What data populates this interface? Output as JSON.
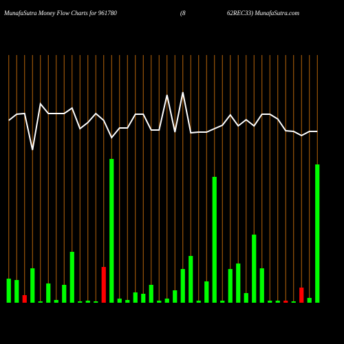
{
  "chart_data": {
    "type": "bar",
    "title": "MunafaSutra  Money Flow  Charts for 961780",
    "subtitle_left": "(8",
    "subtitle_right": "62REC33) MunafaSutra.com",
    "categories": [
      null,
      null,
      null,
      null,
      null,
      null,
      null,
      null,
      null,
      null,
      null,
      null,
      null,
      null,
      null,
      null,
      null,
      null,
      null,
      null,
      null,
      null,
      null,
      null,
      null,
      null,
      null,
      null,
      null,
      null,
      null,
      null,
      null,
      null,
      null,
      null,
      null,
      null,
      null,
      null
    ],
    "values": [
      35,
      33,
      11,
      50,
      2,
      28,
      4,
      26,
      74,
      2,
      3,
      2,
      52,
      209,
      6,
      4,
      15,
      13,
      26,
      3,
      6,
      18,
      49,
      68,
      3,
      31,
      183,
      3,
      49,
      57,
      14,
      99,
      50,
      3,
      3,
      3,
      2,
      22,
      7,
      201
    ],
    "bar_colors": [
      "#00ff00",
      "#00ff00",
      "#ff0000",
      "#00ff00",
      "#00ff00",
      "#00ff00",
      "#00ff00",
      "#00ff00",
      "#00ff00",
      "#00ff00",
      "#00ff00",
      "#00ff00",
      "#ff0000",
      "#00ff00",
      "#00ff00",
      "#00ff00",
      "#00ff00",
      "#00ff00",
      "#00ff00",
      "#00ff00",
      "#00ff00",
      "#00ff00",
      "#00ff00",
      "#00ff00",
      "#00ff00",
      "#00ff00",
      "#00ff00",
      "#00ff00",
      "#00ff00",
      "#00ff00",
      "#00ff00",
      "#00ff00",
      "#00ff00",
      "#00ff00",
      "#00ff00",
      "#ff0000",
      "#00ff00",
      "#ff0000",
      "#00ff00",
      "#00ff00"
    ],
    "line_values": [
      265,
      274,
      275,
      222,
      289,
      275,
      275,
      275,
      283,
      253,
      262,
      275,
      265,
      240,
      254,
      254,
      274,
      274,
      251,
      251,
      302,
      248,
      306,
      247,
      248,
      248,
      253,
      258,
      273,
      257,
      266,
      257,
      274,
      274,
      267,
      250,
      249,
      243,
      249,
      249
    ],
    "line_color": "#ffffff",
    "grid_color": "#b8650a",
    "ylim": [
      0,
      360
    ]
  }
}
